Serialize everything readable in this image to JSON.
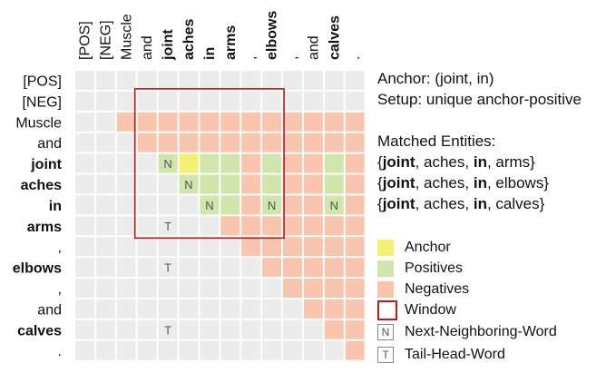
{
  "tokens": [
    "[POS]",
    "[NEG]",
    "Muscle",
    "and",
    "joint",
    "aches",
    "in",
    "arms",
    ",",
    "elbows",
    ",",
    "and",
    "calves",
    "."
  ],
  "bold_tokens": [
    4,
    5,
    6,
    7,
    9,
    12
  ],
  "colors": {
    "background_cell": "#ececec",
    "anchor": "#f5ef72",
    "positive": "#d0e6ad",
    "negative": "#f9c5ae",
    "window_border": "#c0181b",
    "marker_border": "#888888",
    "marker_text": "#555555"
  },
  "matrix": {
    "negative_cells": [
      [
        2,
        2
      ],
      [
        2,
        3
      ],
      [
        2,
        4
      ],
      [
        2,
        5
      ],
      [
        2,
        6
      ],
      [
        2,
        7
      ],
      [
        2,
        8
      ],
      [
        2,
        9
      ],
      [
        2,
        10
      ],
      [
        2,
        11
      ],
      [
        2,
        12
      ],
      [
        2,
        13
      ],
      [
        3,
        3
      ],
      [
        3,
        4
      ],
      [
        3,
        5
      ],
      [
        3,
        6
      ],
      [
        3,
        7
      ],
      [
        3,
        8
      ],
      [
        3,
        9
      ],
      [
        3,
        10
      ],
      [
        3,
        11
      ],
      [
        3,
        12
      ],
      [
        3,
        13
      ],
      [
        4,
        8
      ],
      [
        4,
        10
      ],
      [
        4,
        11
      ],
      [
        4,
        13
      ],
      [
        5,
        8
      ],
      [
        5,
        10
      ],
      [
        5,
        11
      ],
      [
        5,
        13
      ],
      [
        6,
        8
      ],
      [
        6,
        10
      ],
      [
        6,
        11
      ],
      [
        6,
        13
      ],
      [
        7,
        7
      ],
      [
        7,
        8
      ],
      [
        7,
        9
      ],
      [
        7,
        10
      ],
      [
        7,
        11
      ],
      [
        7,
        12
      ],
      [
        7,
        13
      ],
      [
        8,
        8
      ],
      [
        8,
        9
      ],
      [
        8,
        10
      ],
      [
        8,
        11
      ],
      [
        8,
        12
      ],
      [
        8,
        13
      ],
      [
        9,
        9
      ],
      [
        9,
        10
      ],
      [
        9,
        11
      ],
      [
        9,
        12
      ],
      [
        9,
        13
      ],
      [
        10,
        10
      ],
      [
        10,
        11
      ],
      [
        10,
        12
      ],
      [
        10,
        13
      ],
      [
        11,
        11
      ],
      [
        11,
        12
      ],
      [
        11,
        13
      ],
      [
        12,
        12
      ],
      [
        12,
        13
      ],
      [
        13,
        13
      ]
    ],
    "positive_cells": [
      [
        4,
        4
      ],
      [
        4,
        6
      ],
      [
        4,
        7
      ],
      [
        4,
        9
      ],
      [
        4,
        12
      ],
      [
        5,
        5
      ],
      [
        5,
        6
      ],
      [
        5,
        7
      ],
      [
        5,
        9
      ],
      [
        5,
        12
      ],
      [
        6,
        6
      ],
      [
        6,
        7
      ],
      [
        6,
        9
      ],
      [
        6,
        12
      ]
    ],
    "anchor_cells": [
      [
        4,
        5
      ]
    ],
    "markers": [
      {
        "row": 4,
        "col": 4,
        "label": "N"
      },
      {
        "row": 5,
        "col": 5,
        "label": "N"
      },
      {
        "row": 6,
        "col": 6,
        "label": "N"
      },
      {
        "row": 6,
        "col": 9,
        "label": "N"
      },
      {
        "row": 6,
        "col": 12,
        "label": "N"
      },
      {
        "row": 7,
        "col": 4,
        "label": "T"
      },
      {
        "row": 9,
        "col": 4,
        "label": "T"
      },
      {
        "row": 12,
        "col": 4,
        "label": "T"
      }
    ],
    "window": {
      "row_start": 1,
      "row_end": 7,
      "col_start": 3,
      "col_end": 9
    }
  },
  "anchor_line": "Anchor: (joint, in)",
  "setup_line": "Setup: unique anchor-positive",
  "matched": {
    "title": "Matched Entities:",
    "sets": [
      {
        "open": "{",
        "w1": "joint",
        "w2": ", aches, ",
        "w3": "in",
        "w4": ", arms}"
      },
      {
        "open": "{",
        "w1": "joint",
        "w2": ", aches, ",
        "w3": "in",
        "w4": ", elbows}"
      },
      {
        "open": "{",
        "w1": "joint",
        "w2": ", aches, ",
        "w3": "in",
        "w4": ", calves}"
      }
    ]
  },
  "legend": {
    "anchor": {
      "label": "Anchor",
      "color": "#f5ef72"
    },
    "positives": {
      "label": "Positives",
      "color": "#d0e6ad"
    },
    "negatives": {
      "label": "Negatives",
      "color": "#f9c5ae"
    },
    "window": {
      "label": "Window",
      "color": "#c0181b"
    },
    "next_neighboring": {
      "label": "Next-Neighboring-Word",
      "symbol": "N"
    },
    "tail_head": {
      "label": "Tail-Head-Word",
      "symbol": "T"
    }
  }
}
